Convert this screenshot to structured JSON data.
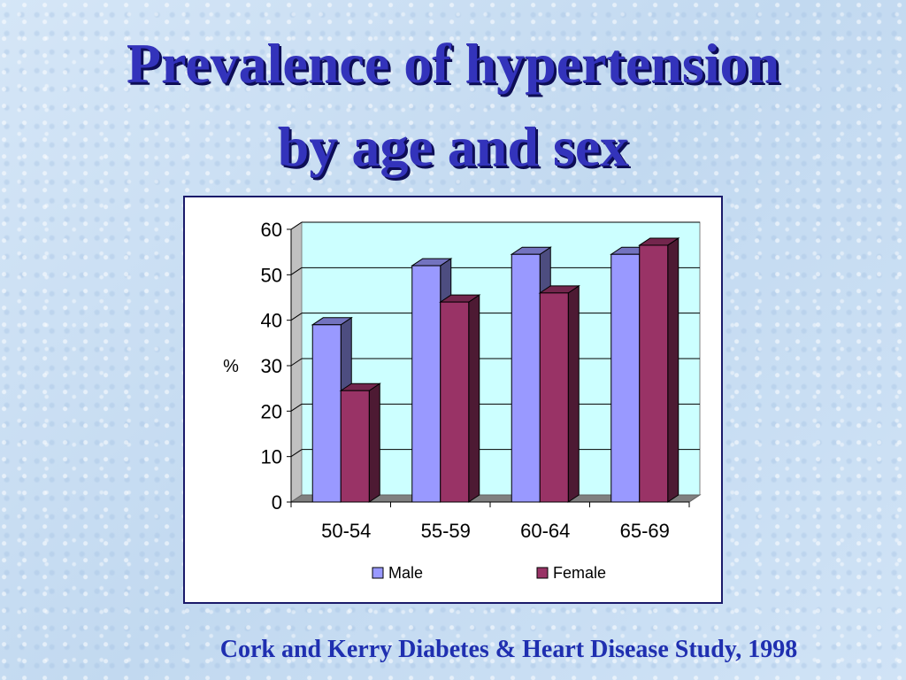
{
  "title_lines": [
    "Prevalence of hypertension",
    "by age and sex"
  ],
  "caption": "Cork and Kerry Diabetes &  Heart Disease Study, 1998",
  "chart_data": {
    "type": "bar",
    "categories": [
      "50-54",
      "55-59",
      "60-64",
      "65-69"
    ],
    "series": [
      {
        "name": "Male",
        "values": [
          39,
          52,
          54.5,
          54.5
        ]
      },
      {
        "name": "Female",
        "values": [
          24.5,
          44,
          46,
          56.5
        ]
      }
    ],
    "ylabel": "%",
    "ylim": [
      0,
      60
    ],
    "yticks": [
      0,
      10,
      20,
      30,
      40,
      50,
      60
    ],
    "grid": true,
    "legend_position": "bottom",
    "colors": {
      "Male": "#9999ff",
      "Female": "#993366",
      "plot_background": "#ccffff"
    }
  }
}
